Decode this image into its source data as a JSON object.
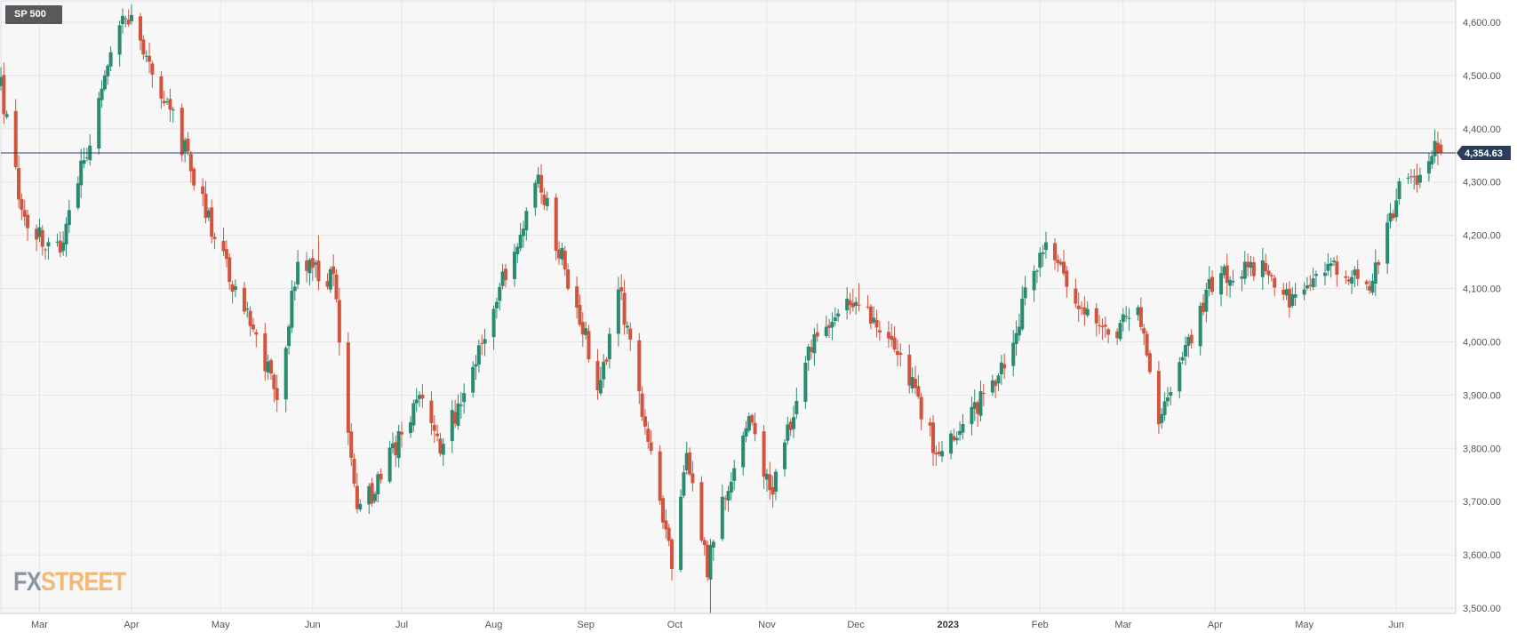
{
  "symbol": "SP 500",
  "watermark": {
    "part1": "FX",
    "part2": "STREET"
  },
  "colors": {
    "up": "#2a8a72",
    "down": "#d0543e",
    "price_line": "#2b3f5c",
    "price_badge": "#2b3f5c",
    "grid": "#e6e6e6",
    "plot_bg": "#f7f7f7"
  },
  "chart_data": {
    "type": "candlestick",
    "title": "SP 500",
    "xlabel": "",
    "ylabel": "",
    "ylim": [
      3490,
      4640
    ],
    "y_ticks": [
      "4,600.00",
      "4,500.00",
      "4,400.00",
      "4,300.00",
      "4,200.00",
      "4,100.00",
      "4,000.00",
      "3,900.00",
      "3,800.00",
      "3,700.00",
      "3,600.00",
      "3,500.00"
    ],
    "y_tick_values": [
      4600,
      4500,
      4400,
      4300,
      4200,
      4100,
      4000,
      3900,
      3800,
      3700,
      3600,
      3500
    ],
    "x_range": [
      "2022-02-16",
      "2023-06-21"
    ],
    "x_ticks": [
      {
        "label": "Mar",
        "date": "2022-03-01",
        "bold": false
      },
      {
        "label": "Apr",
        "date": "2022-04-01",
        "bold": false
      },
      {
        "label": "May",
        "date": "2022-05-01",
        "bold": false
      },
      {
        "label": "Jun",
        "date": "2022-06-01",
        "bold": false
      },
      {
        "label": "Jul",
        "date": "2022-07-01",
        "bold": false
      },
      {
        "label": "Aug",
        "date": "2022-08-01",
        "bold": false
      },
      {
        "label": "Sep",
        "date": "2022-09-01",
        "bold": false
      },
      {
        "label": "Oct",
        "date": "2022-10-01",
        "bold": false
      },
      {
        "label": "Nov",
        "date": "2022-11-01",
        "bold": false
      },
      {
        "label": "Dec",
        "date": "2022-12-01",
        "bold": false
      },
      {
        "label": "2023",
        "date": "2023-01-01",
        "bold": true
      },
      {
        "label": "Feb",
        "date": "2023-02-01",
        "bold": false
      },
      {
        "label": "Mar",
        "date": "2023-03-01",
        "bold": false
      },
      {
        "label": "Apr",
        "date": "2023-04-01",
        "bold": false
      },
      {
        "label": "May",
        "date": "2023-05-01",
        "bold": false
      },
      {
        "label": "Jun",
        "date": "2023-06-01",
        "bold": false
      }
    ],
    "current_price": 4354.63,
    "current_price_label": "4,354.63",
    "grid": true,
    "anchors": [
      [
        "2022-02-16",
        4475
      ],
      [
        "2022-02-24",
        4225
      ],
      [
        "2022-03-08",
        4170
      ],
      [
        "2022-03-29",
        4630
      ],
      [
        "2022-04-13",
        4450
      ],
      [
        "2022-05-02",
        4155
      ],
      [
        "2022-05-20",
        3900
      ],
      [
        "2022-05-27",
        4155
      ],
      [
        "2022-06-08",
        4115
      ],
      [
        "2022-06-16",
        3665
      ],
      [
        "2022-07-08",
        3900
      ],
      [
        "2022-07-14",
        3790
      ],
      [
        "2022-08-16",
        4305
      ],
      [
        "2022-09-06",
        3910
      ],
      [
        "2022-09-12",
        4110
      ],
      [
        "2022-09-30",
        3585
      ],
      [
        "2022-10-05",
        3790
      ],
      [
        "2022-10-12",
        3580
      ],
      [
        "2022-10-25",
        3860
      ],
      [
        "2022-11-03",
        3720
      ],
      [
        "2022-11-15",
        3990
      ],
      [
        "2022-12-01",
        4080
      ],
      [
        "2022-12-13",
        4020
      ],
      [
        "2022-12-28",
        3790
      ],
      [
        "2023-01-18",
        3930
      ],
      [
        "2023-02-02",
        4180
      ],
      [
        "2023-02-23",
        4010
      ],
      [
        "2023-03-06",
        4050
      ],
      [
        "2023-03-13",
        3860
      ],
      [
        "2023-03-31",
        4110
      ],
      [
        "2023-04-18",
        4150
      ],
      [
        "2023-04-27",
        4070
      ],
      [
        "2023-05-05",
        4140
      ],
      [
        "2023-05-24",
        4115
      ],
      [
        "2023-06-02",
        4280
      ],
      [
        "2023-06-12",
        4340
      ],
      [
        "2023-06-15",
        4375
      ],
      [
        "2023-06-16",
        4355
      ]
    ],
    "notable_wicks": [
      {
        "date": "2022-10-13",
        "low": 3491
      },
      {
        "date": "2022-11-30",
        "high": 4100
      },
      {
        "date": "2022-12-02",
        "high": 4110
      },
      {
        "date": "2022-06-03",
        "high": 4200
      }
    ],
    "last_candle": {
      "date": "2023-06-16",
      "open": 4370,
      "high": 4380,
      "low": 4350,
      "close": 4354.63
    }
  }
}
